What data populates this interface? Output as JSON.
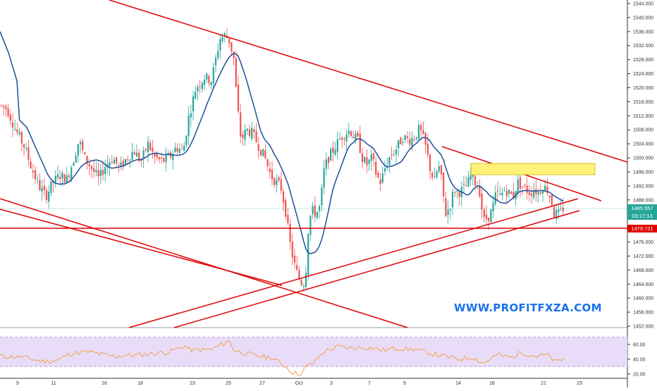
{
  "watermark": "WWW.PROFITFXZA.COM",
  "price_axis": {
    "ticks": [
      "1544.000",
      "1540.000",
      "1536.000",
      "1532.000",
      "1528.000",
      "1524.000",
      "1520.000",
      "1516.000",
      "1512.000",
      "1508.000",
      "1504.000",
      "1500.000",
      "1496.000",
      "1492.000",
      "1488.000",
      "1484.000",
      "1480.000",
      "1476.000",
      "1472.000",
      "1468.000",
      "1464.000",
      "1460.000",
      "1456.000",
      "1452.000"
    ],
    "tick_values": [
      1544,
      1540,
      1536,
      1532,
      1528,
      1524,
      1520,
      1516,
      1512,
      1508,
      1504,
      1500,
      1496,
      1492,
      1488,
      1484,
      1480,
      1476,
      1472,
      1468,
      1464,
      1460,
      1456,
      1452
    ]
  },
  "current_price": {
    "value": "1485.557",
    "countdown": "03:17:13"
  },
  "support_level": {
    "value": "1479.721"
  },
  "date_axis": {
    "ticks": [
      "9",
      "11",
      "16",
      "18",
      "23",
      "25",
      "27",
      "Oct",
      "3",
      "7",
      "9",
      "14",
      "16",
      "21",
      "23"
    ]
  },
  "rsi_axis": {
    "ticks": [
      "60.00",
      "40.00",
      "20.00"
    ]
  },
  "colors": {
    "bull": "#26a69a",
    "bear": "#ef5350",
    "trendline": "#e00000",
    "ma": "#1f4e9c",
    "rsi_line": "#f4a24a",
    "rsi_band": "#e8dcf8",
    "zone": "#fff27a"
  },
  "chart_data": {
    "type": "candlestick",
    "price_range": [
      1452,
      1546
    ],
    "rsi_range": [
      15,
      80
    ]
  }
}
